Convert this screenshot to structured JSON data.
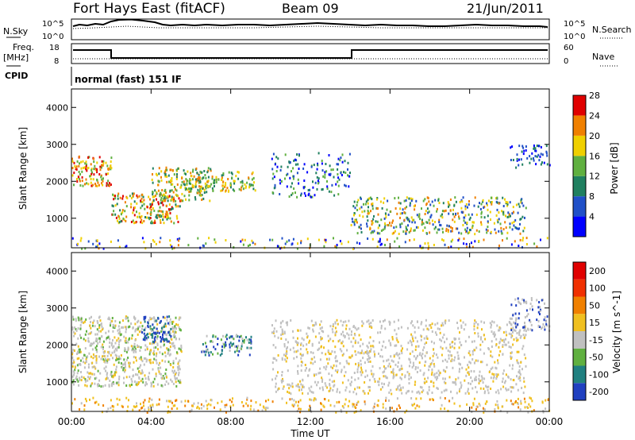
{
  "header": {
    "site": "Fort Hays East (fitACF)",
    "beam": "Beam 09",
    "date": "21/Jun/2011"
  },
  "top_panels": {
    "nsky": {
      "label": "N.Sky",
      "ticks": [
        "10^5",
        "10^0"
      ]
    },
    "nsearch": {
      "label": "N.Search",
      "ticks": [
        "10^5",
        "10^0"
      ]
    },
    "freq": {
      "label": "Freq.",
      "unit": "[MHz]",
      "ticks": [
        "18",
        "8"
      ]
    },
    "nave": {
      "label": "Nave",
      "ticks": [
        "60",
        "0"
      ]
    },
    "cpid": {
      "label": "CPID",
      "value": "normal (fast) 151 IF"
    }
  },
  "chart_data": [
    {
      "type": "heatmap",
      "quantity": "Power",
      "ylabel": "Slant Range [km]",
      "ylim": [
        200,
        4500
      ],
      "yticks": [
        1000,
        2000,
        3000,
        4000
      ],
      "xlim_hours": [
        0,
        24
      ],
      "xticks": [
        "00:00",
        "04:00",
        "08:00",
        "12:00",
        "16:00",
        "20:00",
        "00:00"
      ],
      "colorbar": {
        "label": "Power [dB]",
        "ticks": [
          "4",
          "8",
          "12",
          "16",
          "20",
          "24",
          "28"
        ],
        "colors": [
          "#0000ff",
          "#2050c8",
          "#208060",
          "#60b040",
          "#f0d000",
          "#f08000",
          "#e00000"
        ]
      }
    },
    {
      "type": "heatmap",
      "quantity": "Velocity",
      "ylabel": "Slant Range [km]",
      "ylim": [
        200,
        4500
      ],
      "yticks": [
        1000,
        2000,
        3000,
        4000
      ],
      "xlim_hours": [
        0,
        24
      ],
      "xticks": [
        "00:00",
        "04:00",
        "08:00",
        "12:00",
        "16:00",
        "20:00",
        "00:00"
      ],
      "xlabel": "Time UT",
      "colorbar": {
        "label": "Velocity [m s^-1]",
        "ticks": [
          "200",
          "100",
          "50",
          "15",
          "-15",
          "-50",
          "-100",
          "-200"
        ],
        "colors": [
          "#2040c0",
          "#208080",
          "#60b040",
          "#c0c0c0",
          "#f0c020",
          "#f08000",
          "#f03000",
          "#e00000"
        ]
      }
    }
  ]
}
